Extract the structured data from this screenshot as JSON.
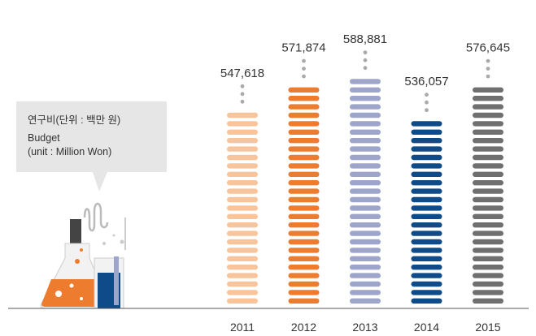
{
  "chart_data": {
    "type": "bar",
    "annotation": [
      "연구비(단위 : 백만 원)",
      "Budget",
      "(unit : Million Won)"
    ],
    "categories": [
      "2011",
      "2012",
      "2013",
      "2014",
      "2015"
    ],
    "values": [
      547618,
      571874,
      588881,
      536057,
      576645
    ],
    "value_labels": [
      "547,618",
      "571,874",
      "588,881",
      "536,057",
      "576,645"
    ],
    "colors": [
      "#f8c49c",
      "#ee7c2e",
      "#9ea5ca",
      "#0e4b88",
      "#6f6f6f"
    ]
  }
}
